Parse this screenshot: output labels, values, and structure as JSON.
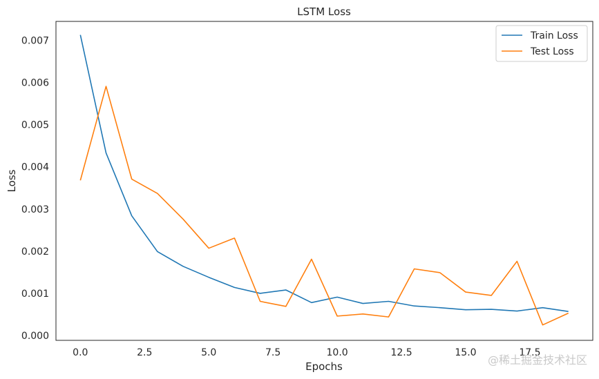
{
  "chart_data": {
    "type": "line",
    "title": "LSTM Loss",
    "xlabel": "Epochs",
    "ylabel": "Loss",
    "xlim": [
      -0.95,
      19.95
    ],
    "ylim": [
      -0.000115,
      0.00745
    ],
    "xticks": [
      0.0,
      2.5,
      5.0,
      7.5,
      10.0,
      12.5,
      15.0,
      17.5
    ],
    "xtick_labels": [
      "0.0",
      "2.5",
      "5.0",
      "7.5",
      "10.0",
      "12.5",
      "15.0",
      "17.5"
    ],
    "yticks": [
      0.0,
      0.001,
      0.002,
      0.003,
      0.004,
      0.005,
      0.006,
      0.007
    ],
    "ytick_labels": [
      "0.000",
      "0.001",
      "0.002",
      "0.003",
      "0.004",
      "0.005",
      "0.006",
      "0.007"
    ],
    "grid": false,
    "legend_position": "top-right",
    "x": [
      0,
      1,
      2,
      3,
      4,
      5,
      6,
      7,
      8,
      9,
      10,
      11,
      12,
      13,
      14,
      15,
      16,
      17,
      18,
      19
    ],
    "series": [
      {
        "name": "Train Loss",
        "color": "#1f77b4",
        "values": [
          0.00713,
          0.00433,
          0.00284,
          0.00199,
          0.00164,
          0.00138,
          0.00114,
          0.001,
          0.00108,
          0.00078,
          0.00091,
          0.00076,
          0.00081,
          0.0007,
          0.00066,
          0.00061,
          0.00062,
          0.00058,
          0.00066,
          0.00057
        ]
      },
      {
        "name": "Test Loss",
        "color": "#ff7f0e",
        "values": [
          0.00368,
          0.00591,
          0.00371,
          0.00337,
          0.00276,
          0.00207,
          0.00231,
          0.00081,
          0.00069,
          0.00181,
          0.00046,
          0.00051,
          0.00044,
          0.00158,
          0.00149,
          0.00103,
          0.00095,
          0.00176,
          0.00025,
          0.00053
        ]
      }
    ]
  },
  "watermark": "@稀土掘金技术社区"
}
